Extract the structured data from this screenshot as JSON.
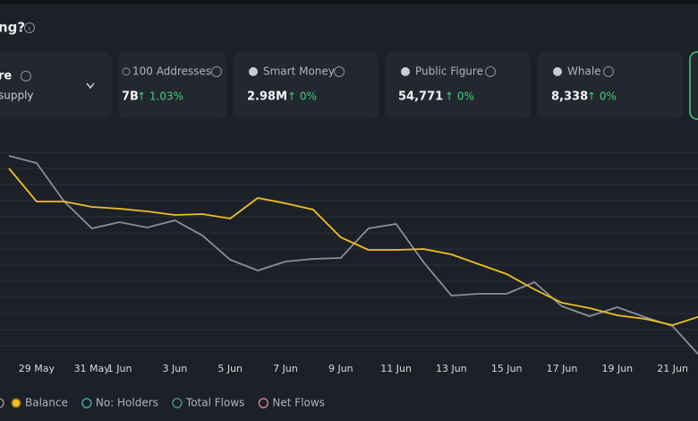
{
  "header": {
    "title": "ng?"
  },
  "cards": [
    {
      "title": "re",
      "subtitle": "supply"
    },
    {
      "title": "100 Addresses",
      "value": "7B",
      "change": "↑ 1.03%"
    },
    {
      "title": "Smart Money",
      "value": "2.98M",
      "change": "↑ 0%"
    },
    {
      "title": "Public Figure",
      "value": "54,771",
      "change": "↑ 0%"
    },
    {
      "title": "Whale",
      "value": "8,338",
      "change": "↑ 0%"
    }
  ],
  "chart_data": {
    "type": "line",
    "categories": [
      null,
      "29 May",
      null,
      "31 May",
      "1 Jun",
      null,
      "3 Jun",
      null,
      "5 Jun",
      null,
      "7 Jun",
      null,
      "9 Jun",
      null,
      "11 Jun",
      null,
      "13 Jun",
      null,
      "15 Jun",
      null,
      "17 Jun",
      null,
      "19 Jun",
      null,
      "21 Jun",
      null
    ],
    "series": [
      {
        "color": "#8a8f98",
        "values": [
          226,
          218,
          175,
          145,
          152,
          146,
          154,
          137,
          110,
          98,
          108,
          111,
          112,
          145,
          150,
          107,
          70,
          72,
          72,
          85,
          58,
          47,
          57,
          46,
          36,
          2
        ]
      },
      {
        "name": "Balance",
        "color": "#f0c020",
        "values": [
          212,
          175,
          175,
          169,
          167,
          164,
          160,
          161,
          156,
          179,
          173,
          166,
          135,
          121,
          121,
          122,
          116,
          105,
          94,
          77,
          62,
          56,
          48,
          44,
          37,
          47
        ]
      }
    ],
    "legend": [
      {
        "name": "No: Holders",
        "color": "#3fa6a0"
      },
      {
        "name": "Total Flows",
        "color": "#3f8f86"
      },
      {
        "name": "Net Flows",
        "color": "#c97a9a"
      }
    ],
    "ylim": [
      0,
      240
    ]
  }
}
